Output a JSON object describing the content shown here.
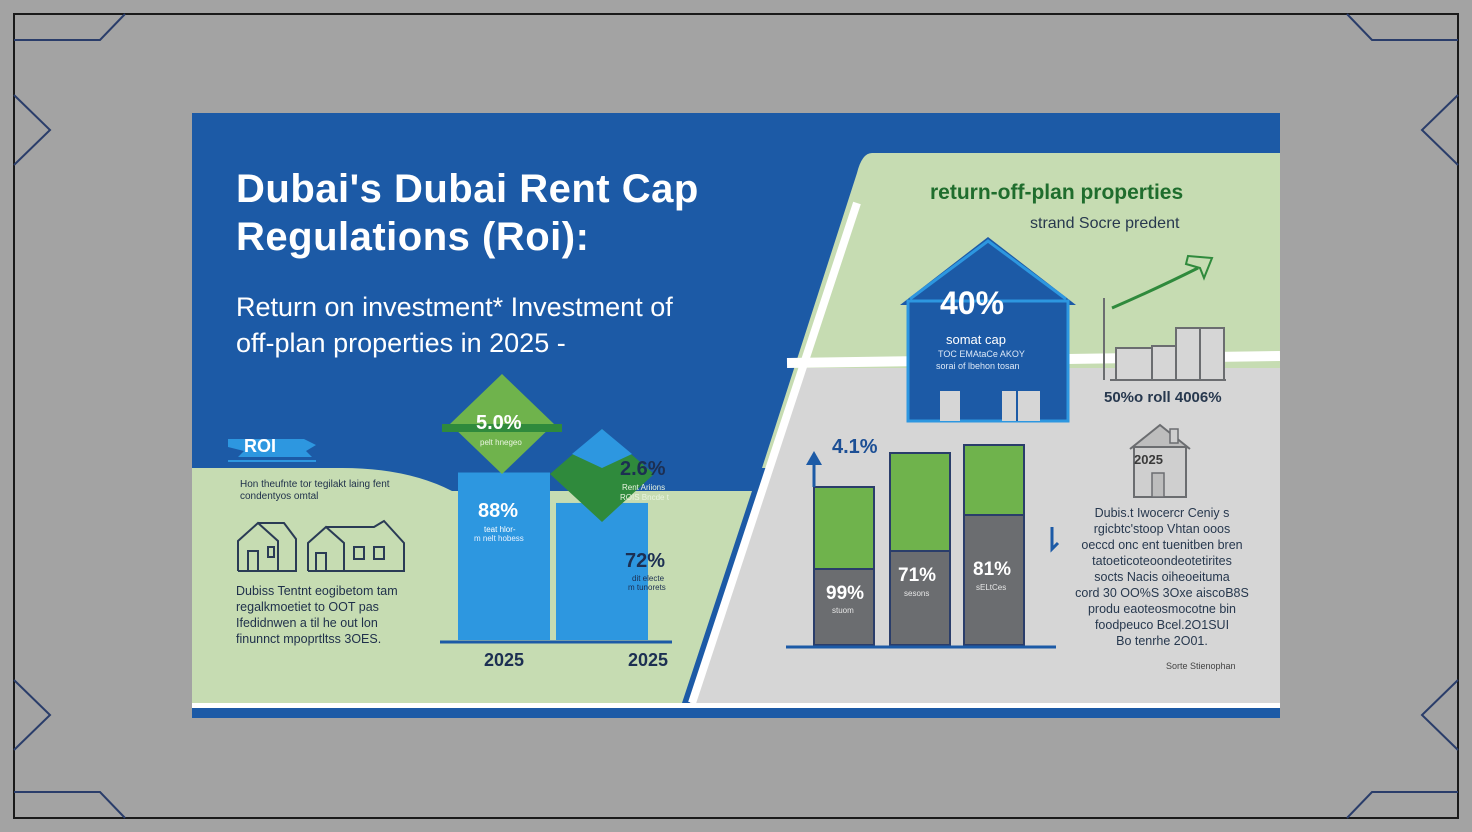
{
  "title": {
    "line1": "Dubai's Dubai Rent Cap",
    "line2": "Regulations (Roi):"
  },
  "subtitle": {
    "line1": "Return on investment* Investment of",
    "line2": "off-plan properties in 2025 -"
  },
  "left_panel": {
    "badge": "ROI",
    "caption_line1": "Hon theufnte tor tegilakt laing fent",
    "caption_line2": "condentyos omtal",
    "body_line1": "Dubiss Tentnt eogibetom tam",
    "body_line2": "regalkmoetiet to OOT pas",
    "body_line3": "Ifedidnwen a til he out lon",
    "body_line4": "finunnct mpoprtltss 3OES."
  },
  "center_chart": {
    "bars": [
      {
        "value_label": "88%",
        "caption": "teat hlor-",
        "sub_caption": "m nelt hobess",
        "diamond_value": "5.0%",
        "diamond_caption": "pelt hnegeo",
        "year": "2025"
      },
      {
        "value_label": "72%",
        "caption": "dit electe",
        "sub_caption": "m tunorets",
        "diamond_value": "2.6%",
        "diamond_caption1": "Rent Ariions",
        "diamond_caption2": "ROIS Bncde t",
        "year": "2025"
      }
    ]
  },
  "right_panel": {
    "title": "return-off-plan properties",
    "subtitle": "strand Socre predent",
    "house": {
      "value": "40%",
      "label": "somat cap",
      "line1": "TOC  EMAtaCe  AKOY",
      "line2": "sorai  of  lbehon  tosan"
    },
    "trend_caption": "50%o roll 4006%",
    "chart_label": "4.1%",
    "small_house_label": "2025",
    "note_line1": "Dubis.t Iwocercr Ceniy s",
    "note_line2": "rgicbtc'stoop Vhtan ooos",
    "note_line3": "oeccd onc ent tuenitben bren",
    "note_line4": "tatoeticoteoondeotetirites",
    "note_line5": "socts Nacis oiheoeituma",
    "note_line6": "cord 30 OO%S 3Oxe aiscoB8S",
    "note_line7": "produ eaoteosmocotne bin",
    "note_line8": "foodpeuco Bcel.2O1SUI",
    "note_line9": "Bo tenrhe 2O01.",
    "source": "Sorte Stienophan"
  },
  "chart_data": [
    {
      "type": "bar",
      "categories": [
        "2025",
        "2025"
      ],
      "values": [
        88,
        72
      ],
      "ylim": [
        0,
        100
      ],
      "annotations": [
        "5.0%",
        "2.6%"
      ]
    },
    {
      "type": "bar",
      "categories": [
        "",
        "",
        ""
      ],
      "series": [
        {
          "values": [
            99,
            71,
            81
          ]
        }
      ],
      "bar_heights_percent": [
        100,
        100,
        100
      ],
      "ylim": [
        0,
        100
      ],
      "annotations": [
        "4.1%"
      ]
    }
  ],
  "colors": {
    "blue": "#1c5aa6",
    "light_blue": "#2d97e0",
    "green": "#6fb34c",
    "dark_green": "#2f8a3c",
    "light_green": "#c6dcb2",
    "gray": "#d5d5d5",
    "dark_gray": "#6b6d70"
  }
}
